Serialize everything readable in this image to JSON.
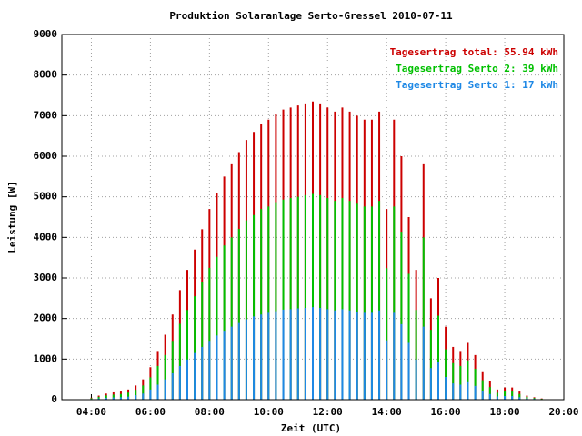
{
  "chart_data": {
    "type": "impulse",
    "title": "Produktion Solaranlage Serto-Gressel 2010-07-11",
    "xlabel": "Zeit (UTC)",
    "ylabel": "Leistung [W]",
    "xlim": [
      3,
      20
    ],
    "ylim": [
      0,
      9000
    ],
    "xticks": [
      {
        "value": 4,
        "label": "04:00"
      },
      {
        "value": 6,
        "label": "06:00"
      },
      {
        "value": 8,
        "label": "08:00"
      },
      {
        "value": 10,
        "label": "10:00"
      },
      {
        "value": 12,
        "label": "12:00"
      },
      {
        "value": 14,
        "label": "14:00"
      },
      {
        "value": 16,
        "label": "16:00"
      },
      {
        "value": 18,
        "label": "18:00"
      },
      {
        "value": 20,
        "label": "20:00"
      }
    ],
    "yticks": [
      0,
      1000,
      2000,
      3000,
      4000,
      5000,
      6000,
      7000,
      8000,
      9000
    ],
    "grid": true,
    "legend": "top-right",
    "x": [
      4,
      4.25,
      4.5,
      4.75,
      5,
      5.25,
      5.5,
      5.75,
      6,
      6.25,
      6.5,
      6.75,
      7,
      7.25,
      7.5,
      7.75,
      8,
      8.25,
      8.5,
      8.75,
      9,
      9.25,
      9.5,
      9.75,
      10,
      10.25,
      10.5,
      10.75,
      11,
      11.25,
      11.5,
      11.75,
      12,
      12.25,
      12.5,
      12.75,
      13,
      13.25,
      13.5,
      13.75,
      14,
      14.25,
      14.5,
      14.75,
      15,
      15.25,
      15.5,
      15.75,
      16,
      16.25,
      16.5,
      16.75,
      17,
      17.25,
      17.5,
      17.75,
      18,
      18.25,
      18.5,
      18.75,
      19,
      19.25,
      19.5
    ],
    "series": [
      {
        "name": "Tagesertrag total: 55.94 kWh",
        "color": "#cc0000",
        "values": [
          50,
          100,
          150,
          180,
          200,
          250,
          350,
          500,
          800,
          1200,
          1600,
          2100,
          2700,
          3200,
          3700,
          4200,
          4700,
          5100,
          5500,
          5800,
          6100,
          6400,
          6600,
          6800,
          6900,
          7050,
          7150,
          7200,
          7250,
          7300,
          7350,
          7300,
          7200,
          7100,
          7200,
          7100,
          7000,
          6900,
          6900,
          7100,
          4700,
          6900,
          6000,
          4500,
          3200,
          5800,
          2500,
          3000,
          1800,
          1300,
          1200,
          1400,
          1100,
          700,
          450,
          250,
          300,
          300,
          200,
          100,
          60,
          30,
          10
        ]
      },
      {
        "name": "Tagesertrag Serto 2: 39 kWh",
        "color": "#00c000",
        "values": [
          35,
          70,
          105,
          125,
          140,
          175,
          240,
          350,
          550,
          830,
          1100,
          1450,
          1870,
          2210,
          2550,
          2900,
          3250,
          3520,
          3800,
          4000,
          4210,
          4420,
          4550,
          4700,
          4760,
          4870,
          4930,
          4970,
          5000,
          5040,
          5070,
          5040,
          4970,
          4900,
          4970,
          4900,
          4830,
          4760,
          4760,
          4900,
          3240,
          4760,
          4140,
          3100,
          2210,
          4000,
          1720,
          2070,
          1240,
          900,
          830,
          970,
          760,
          480,
          310,
          170,
          210,
          210,
          140,
          70,
          40,
          20,
          5
        ]
      },
      {
        "name": "Tagesertrag Serto 1: 17 kWh",
        "color": "#1e88e5",
        "values": [
          15,
          30,
          45,
          55,
          60,
          75,
          110,
          150,
          250,
          370,
          500,
          650,
          830,
          990,
          1150,
          1300,
          1450,
          1580,
          1700,
          1800,
          1890,
          1980,
          2050,
          2100,
          2140,
          2180,
          2220,
          2230,
          2250,
          2260,
          2280,
          2260,
          2230,
          2200,
          2230,
          2200,
          2170,
          2140,
          2140,
          2200,
          1460,
          2140,
          1860,
          1400,
          990,
          1800,
          780,
          930,
          560,
          400,
          370,
          430,
          340,
          220,
          140,
          80,
          90,
          90,
          60,
          30,
          20,
          10,
          5
        ]
      }
    ]
  }
}
